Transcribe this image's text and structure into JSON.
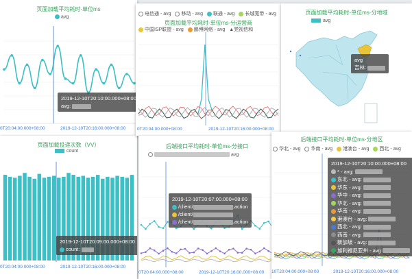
{
  "panels": {
    "p1": {
      "title": "页面加载平均耗时-单位ms",
      "legend": "avg",
      "xlabels": [
        "0T20:04:00.000+08:00",
        "2019-12-10T20:16:00.000+08:00"
      ],
      "tooltip": {
        "time": "2019-12-10T20:10:00.000+08:00",
        "label": "avg:"
      }
    },
    "p2": {
      "title": "页面加载平均耗时-单位ms-分运营商",
      "legend": [
        "电信通 - avg",
        "移动 - avg",
        "联通 - avg",
        "长城宽带 - avg",
        "中国ISP联盟 - avg",
        "鹏博网络 - avg",
        "党视信和"
      ],
      "xlabels": [
        "0T20:04:00.000+08:00",
        "2019-12-10T20:16:00.000+08:00"
      ]
    },
    "p3": {
      "title": "页面加载平均耗时-单位ms-分地域",
      "legend": "avg",
      "tooltip": {
        "line1": "avg",
        "line2": "吉林:"
      }
    },
    "p4": {
      "title": "页面加载投递次数（VV）",
      "legend": "count",
      "xlabels": [
        "0T20:04:00.000+08:00",
        "2019-12-10T20:16:00.000+08:00"
      ],
      "tooltip": {
        "time": "2019-12-10T20:09:00.000+08:00",
        "label": "count:"
      }
    },
    "p5": {
      "title": "后端接口平均耗时-单位ms-分接口",
      "legend": "avg",
      "xlabels": [
        "0T20:04:00.000+08:00",
        "2019-12-10T20:16:00.000+08:00"
      ],
      "tooltip": {
        "time": "2019-12-10T20:07:00.000+08:00",
        "rows": [
          "/client/",
          "/client/",
          "/client/"
        ],
        "suffix": ".action"
      }
    },
    "p6": {
      "title": "后端接口平均耗时-单位ms-分地区",
      "legend": [
        "华北 - avg",
        "华南 - avg",
        "港澳台 - avg",
        "西北 - avg"
      ],
      "xlabels": [
        "10T20:04:00.000+08:00",
        "2019-12-10T20:16:00.000+08:00"
      ],
      "tooltip": {
        "time": "2019-12-10T20:10:00.000+08:00",
        "rows": [
          "* - avg:",
          "东北 - avg:",
          "华东 - avg:",
          "华中 - avg:",
          "华北 - avg:",
          "华南 - avg:",
          "港澳台 - avg:",
          "西北 - avg:",
          "西南 - avg:",
          "新加坡 - avg:",
          "加利福尼亚州 - avg"
        ]
      }
    }
  },
  "colors": {
    "teal": "#3cc0c6",
    "green": "#3aa35e",
    "cursor": "#3a7bd5"
  },
  "chart_data": [
    {
      "type": "line",
      "title": "页面加载平均耗时-单位ms",
      "series": [
        {
          "name": "avg",
          "values": [
            55,
            70,
            40,
            60,
            35,
            65,
            50,
            80,
            45,
            40,
            70,
            30,
            55,
            40,
            60,
            35,
            50,
            40
          ]
        }
      ]
    },
    {
      "type": "bar",
      "title": "页面加载投递次数（VV）",
      "series": [
        {
          "name": "count",
          "values": [
            88,
            86,
            85,
            87,
            90,
            86,
            84,
            89,
            85,
            86,
            87,
            85,
            86,
            90,
            88,
            86,
            87,
            85,
            86,
            88,
            84,
            86,
            85,
            87,
            86,
            85,
            88
          ]
        }
      ]
    }
  ]
}
